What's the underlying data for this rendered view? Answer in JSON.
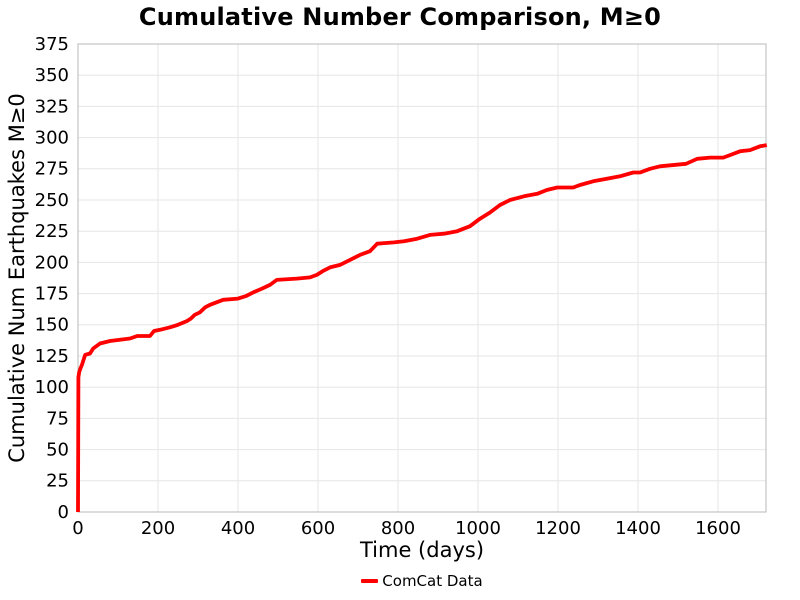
{
  "chart_data": {
    "type": "line",
    "title": "Cumulative Number Comparison, M≥0",
    "xlabel": "Time (days)",
    "ylabel": "Cumulative Num Earthquakes M≥0",
    "grid": true,
    "legend_position": "bottom-center",
    "xlim": [
      0,
      1720
    ],
    "ylim": [
      0,
      375
    ],
    "xticks": [
      0,
      200,
      400,
      600,
      800,
      1000,
      1200,
      1400,
      1600
    ],
    "yticks": [
      0,
      25,
      50,
      75,
      100,
      125,
      150,
      175,
      200,
      225,
      250,
      275,
      300,
      325,
      350,
      375
    ],
    "colors": {
      "line": "#ff0000",
      "grid": "#e6e6e6",
      "frame": "#c4c4c4",
      "text": "#000000",
      "background": "#ffffff"
    },
    "legend": [
      {
        "label": "ComCat Data",
        "color": "#ff0000"
      }
    ],
    "series": [
      {
        "name": "ComCat Data",
        "color": "#ff0000",
        "x": [
          0,
          1,
          3,
          6,
          10,
          14,
          18,
          30,
          38,
          55,
          80,
          105,
          130,
          148,
          180,
          190,
          205,
          230,
          250,
          272,
          282,
          292,
          305,
          318,
          330,
          363,
          400,
          420,
          438,
          460,
          480,
          497,
          547,
          580,
          597,
          612,
          630,
          655,
          680,
          705,
          730,
          748,
          790,
          815,
          848,
          880,
          915,
          948,
          980,
          1005,
          1030,
          1055,
          1080,
          1115,
          1148,
          1172,
          1198,
          1238,
          1255,
          1288,
          1322,
          1355,
          1388,
          1405,
          1430,
          1455,
          1520,
          1548,
          1580,
          1613,
          1630,
          1655,
          1680,
          1705,
          1722
        ],
        "y": [
          0,
          108,
          112,
          115,
          118,
          122,
          126,
          127,
          131,
          135,
          137,
          138,
          139,
          141,
          141,
          145,
          146,
          148,
          150,
          153,
          155,
          158,
          160,
          164,
          166,
          170,
          171,
          173,
          176,
          179,
          182,
          186,
          187,
          188,
          190,
          193,
          196,
          198,
          202,
          206,
          209,
          215,
          216,
          217,
          219,
          222,
          223,
          225,
          229,
          235,
          240,
          246,
          250,
          253,
          255,
          258,
          260,
          260,
          262,
          265,
          267,
          269,
          272,
          272,
          275,
          277,
          279,
          283,
          284,
          284,
          286,
          289,
          290,
          293,
          294
        ]
      }
    ]
  }
}
